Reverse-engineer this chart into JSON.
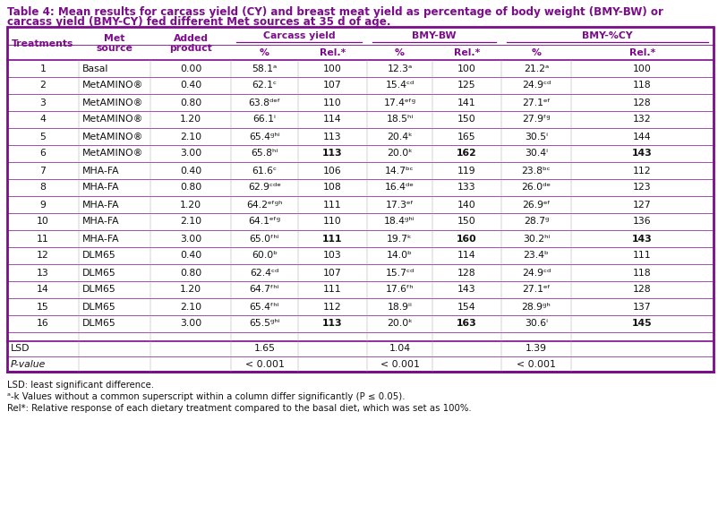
{
  "title_line1": "Table 4: Mean results for carcass yield (CY) and breast meat yield as percentage of body weight (BMY-BW) or",
  "title_line2": "carcass yield (BMY-CY) fed different Met sources at 35 d of age.",
  "title_color": "#7B0C8A",
  "border_color": "#7B0C8A",
  "rows": [
    [
      "1",
      "Basal",
      "0.00",
      "58.1ᵃ",
      "100",
      "12.3ᵃ",
      "100",
      "21.2ᵃ",
      "100"
    ],
    [
      "2",
      "MetAMINO®",
      "0.40",
      "62.1ᶜ",
      "107",
      "15.4ᶜᵈ",
      "125",
      "24.9ᶜᵈ",
      "118"
    ],
    [
      "3",
      "MetAMINO®",
      "0.80",
      "63.8ᵈᵉᶠ",
      "110",
      "17.4ᵉᶠᵍ",
      "141",
      "27.1ᵉᶠ",
      "128"
    ],
    [
      "4",
      "MetAMINO®",
      "1.20",
      "66.1ⁱ",
      "114",
      "18.5ʰⁱ",
      "150",
      "27.9ᶠᵍ",
      "132"
    ],
    [
      "5",
      "MetAMINO®",
      "2.10",
      "65.4ᵍʰⁱ",
      "113",
      "20.4ᵏ",
      "165",
      "30.5ⁱ",
      "144"
    ],
    [
      "6",
      "MetAMINO®",
      "3.00",
      "65.8ʰⁱ",
      "113",
      "20.0ᵏ",
      "162",
      "30.4ⁱ",
      "143"
    ],
    [
      "7",
      "MHA-FA",
      "0.40",
      "61.6ᶜ",
      "106",
      "14.7ᵇᶜ",
      "119",
      "23.8ᵇᶜ",
      "112"
    ],
    [
      "8",
      "MHA-FA",
      "0.80",
      "62.9ᶜᵈᵉ",
      "108",
      "16.4ᵈᵉ",
      "133",
      "26.0ᵈᵉ",
      "123"
    ],
    [
      "9",
      "MHA-FA",
      "1.20",
      "64.2ᵉᶠᵍʰ",
      "111",
      "17.3ᵉᶠ",
      "140",
      "26.9ᵉᶠ",
      "127"
    ],
    [
      "10",
      "MHA-FA",
      "2.10",
      "64.1ᵉᶠᵍ",
      "110",
      "18.4ᵍʰⁱ",
      "150",
      "28.7ᵍ",
      "136"
    ],
    [
      "11",
      "MHA-FA",
      "3.00",
      "65.0ᶠʰⁱ",
      "111",
      "19.7ᵏ",
      "160",
      "30.2ʰⁱ",
      "143"
    ],
    [
      "12",
      "DLM65",
      "0.40",
      "60.0ᵇ",
      "103",
      "14.0ᵇ",
      "114",
      "23.4ᵇ",
      "111"
    ],
    [
      "13",
      "DLM65",
      "0.80",
      "62.4ᶜᵈ",
      "107",
      "15.7ᶜᵈ",
      "128",
      "24.9ᶜᵈ",
      "118"
    ],
    [
      "14",
      "DLM65",
      "1.20",
      "64.7ᶠʰⁱ",
      "111",
      "17.6ᶠʰ",
      "143",
      "27.1ᵉᶠ",
      "128"
    ],
    [
      "15",
      "DLM65",
      "2.10",
      "65.4ᶠʰⁱ",
      "112",
      "18.9ⁱⁱ",
      "154",
      "28.9ᵍʰ",
      "137"
    ],
    [
      "16",
      "DLM65",
      "3.00",
      "65.5ᵍʰⁱ",
      "113",
      "20.0ᵏ",
      "163",
      "30.6ⁱ",
      "145"
    ]
  ],
  "bold_rel_rows": [
    5,
    10,
    15
  ],
  "lsd_values": [
    "1.65",
    "1.04",
    "1.39"
  ],
  "pval_values": [
    "< 0.001",
    "< 0.001",
    "< 0.001"
  ],
  "footnotes": [
    "LSD: least significant difference.",
    "ᵃ-k Values without a common superscript within a column differ significantly (P ≤ 0.05).",
    "Rel*: Relative response of each dietary treatment compared to the basal diet, which was set as 100%."
  ],
  "figsize": [
    8.03,
    5.65
  ],
  "dpi": 100
}
